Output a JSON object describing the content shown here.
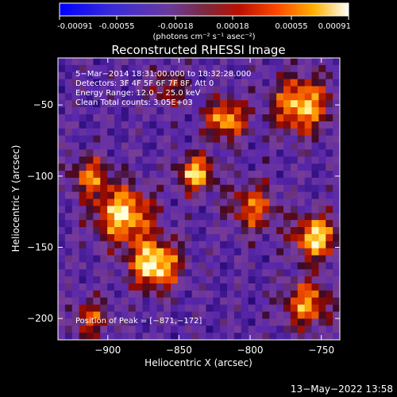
{
  "colorbar": {
    "tick_labels": [
      "-0.00091",
      "-0.00055",
      "-0.00018",
      "0.00018",
      "0.00055",
      "0.00091"
    ],
    "tick_values": [
      -0.00091,
      -0.00055,
      -0.00018,
      0.00018,
      0.00055,
      0.00091
    ],
    "range": [
      -0.00091,
      0.00091
    ],
    "units": "(photons cm⁻² s⁻¹ asec⁻²)"
  },
  "chart_data": {
    "type": "heatmap",
    "title": "Reconstructed RHESSI Image",
    "xlabel": "Heliocentric X (arcsec)",
    "ylabel": "Heliocentric Y (arcsec)",
    "xlim": [
      -935,
      -737
    ],
    "ylim": [
      -215,
      -17
    ],
    "x_ticks": [
      -900,
      -850,
      -800,
      -750
    ],
    "x_tick_labels": [
      "−900",
      "−850",
      "−800",
      "−750"
    ],
    "y_ticks": [
      -200,
      -150,
      -100,
      -50
    ],
    "y_tick_labels": [
      "−200",
      "−150",
      "−100",
      "−50"
    ],
    "grid_size": 40,
    "hot_spots": [
      {
        "x": -889,
        "y": -127,
        "sigma": 14,
        "amp": 0.9
      },
      {
        "x": -867,
        "y": -162,
        "sigma": 12,
        "amp": 1.0
      },
      {
        "x": -838,
        "y": -98,
        "sigma": 9,
        "amp": 0.85
      },
      {
        "x": -817,
        "y": -60,
        "sigma": 10,
        "amp": 0.8
      },
      {
        "x": -764,
        "y": -50,
        "sigma": 14,
        "amp": 0.85
      },
      {
        "x": -754,
        "y": -143,
        "sigma": 11,
        "amp": 0.9
      },
      {
        "x": -798,
        "y": -122,
        "sigma": 12,
        "amp": 0.6
      },
      {
        "x": -760,
        "y": -190,
        "sigma": 12,
        "amp": 0.7
      },
      {
        "x": -913,
        "y": -100,
        "sigma": 10,
        "amp": 0.6
      },
      {
        "x": -858,
        "y": -38,
        "sigma": 9,
        "amp": 0.45
      },
      {
        "x": -912,
        "y": -200,
        "sigma": 10,
        "amp": 0.5
      }
    ],
    "annotations": [
      "5−Mar−2014 18:31:00.000 to 18:32:28.000",
      "Detectors: 3F 4F 5F 6F 7F 8F, Att 0",
      "Energy Range: 12.0 − 25.0 keV",
      "Clean     Total counts: 3.05E+03"
    ],
    "peak_label": "Position of Peak = [−871,−172]"
  },
  "footer_timestamp": "13−May−2022 13:58"
}
